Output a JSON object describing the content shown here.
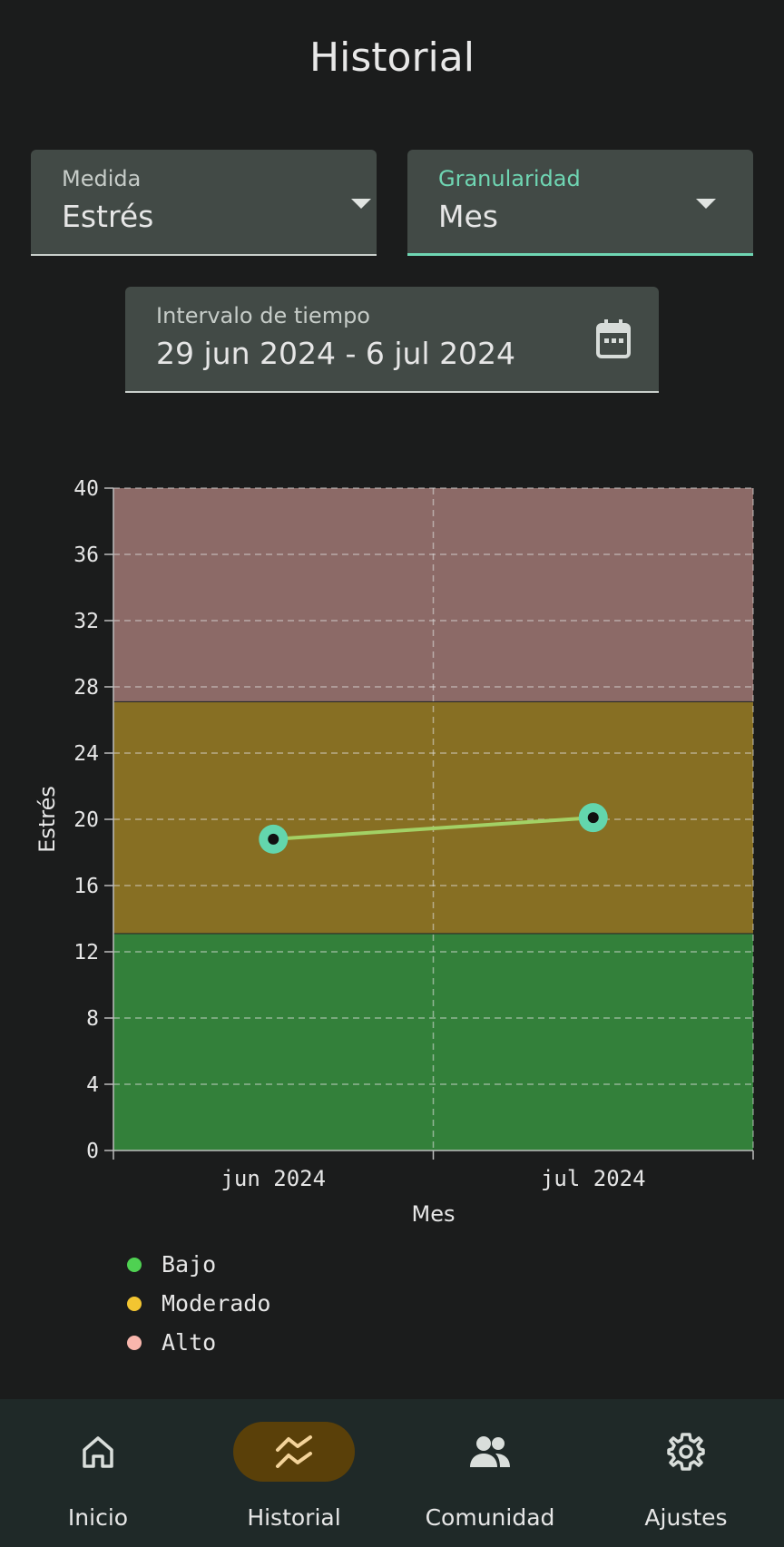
{
  "header": {
    "title": "Historial"
  },
  "filters": {
    "measure": {
      "label": "Medida",
      "value": "Estrés"
    },
    "granularity": {
      "label": "Granularidad",
      "value": "Mes"
    },
    "interval": {
      "label": "Intervalo de tiempo",
      "value": "29 jun 2024 - 6 jul 2024"
    }
  },
  "chart_data": {
    "type": "line",
    "categories": [
      "jun 2024",
      "jul 2024"
    ],
    "series": [
      {
        "values": [
          18.8,
          20.1
        ],
        "color": "#a3d165"
      }
    ],
    "xlabel": "Mes",
    "ylabel": "Estrés",
    "ylim": [
      0,
      40
    ],
    "yticks": [
      0,
      4,
      8,
      12,
      16,
      20,
      24,
      28,
      32,
      36,
      40
    ],
    "bands": [
      {
        "name": "Bajo",
        "from": 0,
        "to": 13.1,
        "color": "#33803a"
      },
      {
        "name": "Moderado",
        "from": 13.1,
        "to": 27.1,
        "color": "#876f23"
      },
      {
        "name": "Alto",
        "from": 27.1,
        "to": 40,
        "color": "#8c6a67"
      }
    ],
    "grid": true,
    "legend_position": "bottom-left"
  },
  "legend": [
    {
      "label": "Bajo",
      "color": "#4fd152"
    },
    {
      "label": "Moderado",
      "color": "#f3c531"
    },
    {
      "label": "Alto",
      "color": "#f8b6ad"
    }
  ],
  "nav": {
    "items": [
      {
        "label": "Inicio",
        "icon": "home-icon"
      },
      {
        "label": "Historial",
        "icon": "history-icon",
        "active": true
      },
      {
        "label": "Comunidad",
        "icon": "community-icon"
      },
      {
        "label": "Ajustes",
        "icon": "settings-icon"
      }
    ]
  }
}
